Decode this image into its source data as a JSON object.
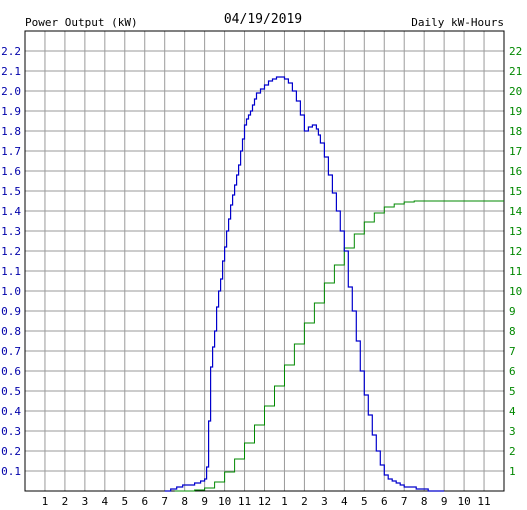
{
  "chart_data": {
    "type": "line",
    "title": "04/19/2019",
    "ylabel_left": "Power Output (kW)",
    "ylabel_right": "Daily kW-Hours",
    "colors": {
      "left_axis": "#0000aa",
      "right_axis": "#008800",
      "grid": "#9a9a9a",
      "frame": "#000000",
      "power_line": "#0000cc",
      "energy_line": "#008800"
    },
    "x_ticks": [
      "1",
      "2",
      "3",
      "4",
      "5",
      "6",
      "7",
      "8",
      "9",
      "10",
      "11",
      "12",
      "1",
      "2",
      "3",
      "4",
      "5",
      "6",
      "7",
      "8",
      "9",
      "10",
      "11"
    ],
    "y_left_ticks": [
      "0.1",
      "0.2",
      "0.3",
      "0.4",
      "0.5",
      "0.6",
      "0.7",
      "0.8",
      "0.9",
      "1.0",
      "1.1",
      "1.2",
      "1.3",
      "1.4",
      "1.5",
      "1.6",
      "1.7",
      "1.8",
      "1.9",
      "2.0",
      "2.1",
      "2.2"
    ],
    "y_right_ticks": [
      "1",
      "2",
      "3",
      "4",
      "5",
      "6",
      "7",
      "8",
      "9",
      "10",
      "11",
      "12",
      "13",
      "14",
      "15",
      "16",
      "17",
      "18",
      "19",
      "20",
      "21",
      "22"
    ],
    "xlim": [
      0,
      24
    ],
    "ylim_left": [
      0,
      2.3
    ],
    "ylim_right": [
      0,
      23
    ],
    "grid": true,
    "series": [
      {
        "axis": "left",
        "x": [
          7.0,
          7.3,
          7.6,
          7.9,
          8.2,
          8.5,
          8.8,
          9.0,
          9.1,
          9.2,
          9.3,
          9.4,
          9.5,
          9.6,
          9.7,
          9.8,
          9.9,
          10.0,
          10.1,
          10.2,
          10.3,
          10.4,
          10.5,
          10.6,
          10.7,
          10.8,
          10.9,
          11.0,
          11.1,
          11.2,
          11.3,
          11.4,
          11.5,
          11.6,
          11.8,
          12.0,
          12.2,
          12.4,
          12.6,
          12.8,
          13.0,
          13.2,
          13.4,
          13.6,
          13.8,
          14.0,
          14.2,
          14.4,
          14.6,
          14.7,
          14.8,
          15.0,
          15.2,
          15.4,
          15.6,
          15.8,
          16.0,
          16.2,
          16.4,
          16.6,
          16.8,
          17.0,
          17.2,
          17.4,
          17.6,
          17.8,
          18.0,
          18.2,
          18.4,
          18.6,
          18.8,
          19.0,
          19.2,
          19.4,
          19.6,
          19.8,
          20.0,
          20.2,
          20.4,
          20.6,
          20.8,
          21.0
        ],
        "y": [
          0.0,
          0.01,
          0.02,
          0.03,
          0.03,
          0.04,
          0.05,
          0.06,
          0.12,
          0.35,
          0.62,
          0.72,
          0.8,
          0.92,
          1.0,
          1.06,
          1.15,
          1.22,
          1.3,
          1.36,
          1.43,
          1.48,
          1.53,
          1.58,
          1.63,
          1.7,
          1.76,
          1.83,
          1.86,
          1.88,
          1.9,
          1.93,
          1.96,
          1.99,
          2.01,
          2.03,
          2.05,
          2.06,
          2.07,
          2.07,
          2.06,
          2.04,
          2.0,
          1.95,
          1.88,
          1.8,
          1.82,
          1.83,
          1.81,
          1.78,
          1.74,
          1.67,
          1.58,
          1.49,
          1.4,
          1.3,
          1.2,
          1.02,
          0.9,
          0.75,
          0.6,
          0.48,
          0.38,
          0.28,
          0.2,
          0.13,
          0.08,
          0.06,
          0.05,
          0.04,
          0.03,
          0.02,
          0.02,
          0.02,
          0.01,
          0.01,
          0.01,
          0.0,
          0.0,
          0.0,
          0.0,
          0.0
        ]
      },
      {
        "axis": "right",
        "x": [
          7.5,
          8.0,
          8.5,
          9.0,
          9.5,
          10.0,
          10.5,
          11.0,
          11.5,
          12.0,
          12.5,
          13.0,
          13.5,
          14.0,
          14.5,
          15.0,
          15.5,
          16.0,
          16.5,
          17.0,
          17.5,
          18.0,
          18.5,
          19.0,
          19.5,
          20.0,
          21.0,
          22.0,
          23.0,
          24.0
        ],
        "y": [
          0.0,
          0.0,
          0.05,
          0.15,
          0.45,
          0.95,
          1.6,
          2.4,
          3.3,
          4.25,
          5.25,
          6.3,
          7.35,
          8.4,
          9.4,
          10.4,
          11.3,
          12.15,
          12.85,
          13.45,
          13.9,
          14.2,
          14.35,
          14.45,
          14.5,
          14.5,
          14.5,
          14.5,
          14.5,
          14.5
        ]
      }
    ]
  }
}
